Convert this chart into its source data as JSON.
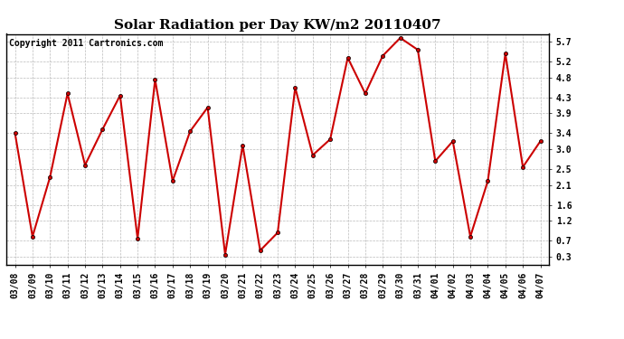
{
  "title": "Solar Radiation per Day KW/m2 20110407",
  "copyright": "Copyright 2011 Cartronics.com",
  "dates": [
    "03/08",
    "03/09",
    "03/10",
    "03/11",
    "03/12",
    "03/13",
    "03/14",
    "03/15",
    "03/16",
    "03/17",
    "03/18",
    "03/19",
    "03/20",
    "03/21",
    "03/22",
    "03/23",
    "03/24",
    "03/25",
    "03/26",
    "03/27",
    "03/28",
    "03/29",
    "03/30",
    "03/31",
    "04/01",
    "04/02",
    "04/03",
    "04/04",
    "04/05",
    "04/06",
    "04/07"
  ],
  "values": [
    3.4,
    0.8,
    2.3,
    4.4,
    2.6,
    3.5,
    4.35,
    0.75,
    4.75,
    2.2,
    3.45,
    4.05,
    0.35,
    3.1,
    0.45,
    0.9,
    4.55,
    2.85,
    3.25,
    5.3,
    4.4,
    5.35,
    5.8,
    5.5,
    2.7,
    3.2,
    0.8,
    2.2,
    5.4,
    2.55,
    3.2
  ],
  "line_color": "#cc0000",
  "marker": "o",
  "markersize": 3,
  "linewidth": 1.5,
  "yticks": [
    0.3,
    0.7,
    1.2,
    1.6,
    2.1,
    2.5,
    3.0,
    3.4,
    3.9,
    4.3,
    4.8,
    5.2,
    5.7
  ],
  "ylim": [
    0.1,
    5.9
  ],
  "grid_color": "#bbbbbb",
  "bg_color": "#ffffff",
  "title_fontsize": 11,
  "tick_fontsize": 7,
  "copyright_fontsize": 7
}
